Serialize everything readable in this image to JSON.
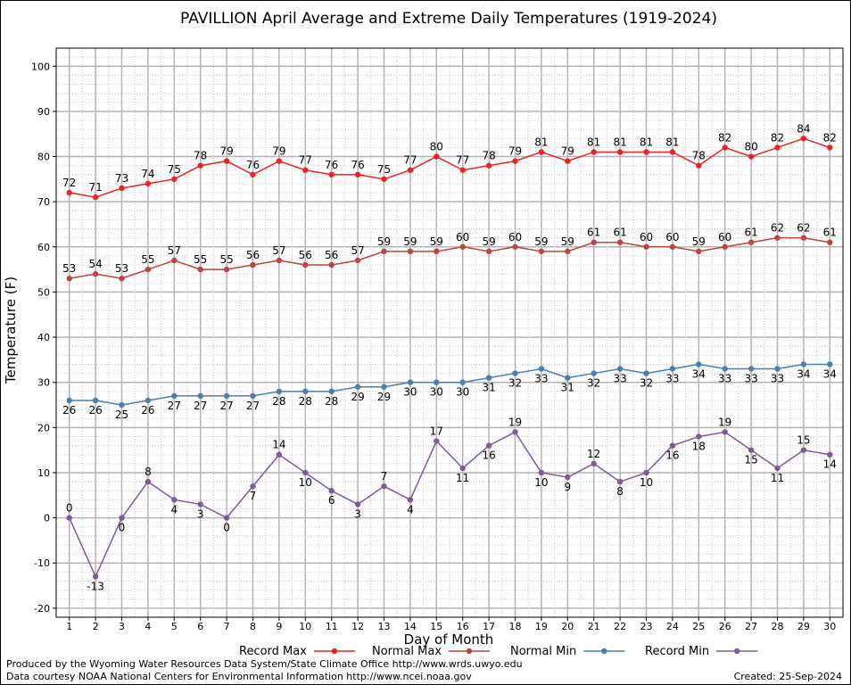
{
  "chart_data": {
    "type": "line",
    "title": "PAVILLION April Average and Extreme Daily Temperatures (1919-2024)",
    "xlabel": "Day of Month",
    "ylabel": "Temperature (F)",
    "ylim": [
      -22,
      104
    ],
    "yticks": [
      -20,
      -10,
      0,
      10,
      20,
      30,
      40,
      50,
      60,
      70,
      80,
      90,
      100
    ],
    "xlim": [
      0.5,
      30.5
    ],
    "grid": true,
    "legend_position": "bottom",
    "x": [
      1,
      2,
      3,
      4,
      5,
      6,
      7,
      8,
      9,
      10,
      11,
      12,
      13,
      14,
      15,
      16,
      17,
      18,
      19,
      20,
      21,
      22,
      23,
      24,
      25,
      26,
      27,
      28,
      29,
      30
    ],
    "series": [
      {
        "name": "Record Max",
        "color": "#ee2222",
        "label_position": "above",
        "values": [
          72,
          71,
          73,
          74,
          75,
          78,
          79,
          76,
          79,
          77,
          76,
          76,
          75,
          77,
          80,
          77,
          78,
          79,
          81,
          79,
          81,
          81,
          81,
          81,
          78,
          82,
          80,
          82,
          84,
          82
        ]
      },
      {
        "name": "Normal Max",
        "color": "#bb4444",
        "label_position": "above",
        "values": [
          53,
          54,
          53,
          55,
          57,
          55,
          55,
          56,
          57,
          56,
          56,
          57,
          59,
          59,
          59,
          60,
          59,
          60,
          59,
          59,
          61,
          61,
          60,
          60,
          59,
          60,
          61,
          62,
          62,
          61
        ]
      },
      {
        "name": "Normal Min",
        "color": "#4a7fb0",
        "label_position": "below",
        "values": [
          26,
          26,
          25,
          26,
          27,
          27,
          27,
          27,
          28,
          28,
          28,
          29,
          29,
          30,
          30,
          30,
          31,
          32,
          33,
          31,
          32,
          33,
          32,
          33,
          34,
          33,
          33,
          33,
          34,
          34
        ]
      },
      {
        "name": "Record Min",
        "color": "#7f5a99",
        "label_position": "mixed",
        "values": [
          0,
          -13,
          0,
          8,
          4,
          3,
          0,
          7,
          14,
          10,
          6,
          3,
          7,
          4,
          17,
          11,
          16,
          19,
          10,
          9,
          12,
          8,
          10,
          16,
          18,
          19,
          15,
          11,
          15,
          14
        ]
      }
    ]
  },
  "footer": {
    "producer": "Produced by the Wyoming Water Resources Data System/State Climate Office http://www.wrds.uwyo.edu",
    "courtesy": "Data courtesy NOAA National Centers for Environmental Information http://www.ncei.noaa.gov",
    "created": "Created:  25-Sep-2024"
  }
}
